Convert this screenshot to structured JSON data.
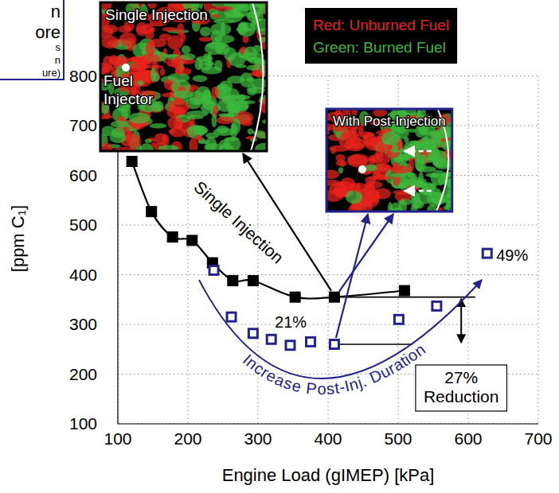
{
  "chart_data": {
    "type": "scatter",
    "x_label": "Engine Load (gIMEP) [kPa]",
    "y_label": "[ppm C₁]",
    "xlim": [
      100,
      700
    ],
    "xticks": [
      100,
      200,
      300,
      400,
      500,
      600,
      700
    ],
    "ylim": [
      100,
      800
    ],
    "yticks": [
      100,
      200,
      300,
      400,
      500,
      600,
      700,
      800
    ],
    "grid": true,
    "series": [
      {
        "name": "Single Injection",
        "color": "#000000",
        "marker": "square",
        "line_style": "smooth",
        "x": [
          120,
          148,
          178,
          206,
          235,
          264,
          293,
          353,
          409,
          509
        ],
        "values": [
          628,
          527,
          476,
          469,
          424,
          388,
          388,
          355,
          355,
          368
        ]
      },
      {
        "name": "Increase Post-Inj. Duration",
        "color": "#23238f",
        "marker": "square-open",
        "x": [
          237,
          262,
          293,
          319,
          346,
          375,
          409,
          501,
          555,
          627
        ],
        "values": [
          409,
          315,
          282,
          270,
          258,
          265,
          260,
          310,
          337,
          443
        ]
      }
    ],
    "reference_lines": [
      {
        "y": 355,
        "x": [
          409,
          610
        ],
        "color": "#000000"
      },
      {
        "y": 260,
        "x": [
          409,
          520
        ],
        "color": "#000000"
      }
    ],
    "reduction": {
      "x": 590,
      "from": 355,
      "to": 260,
      "label": "27% Reduction"
    },
    "annotations": [
      {
        "text": "21%",
        "x": 324,
        "y": 305
      },
      {
        "text": "49%",
        "x": 640,
        "y": 440
      }
    ],
    "insets": [
      {
        "title": "Single Injection",
        "label": "Fuel Injector",
        "color": "#000000"
      },
      {
        "title": "With Post-Injection",
        "color": "#23238f"
      }
    ],
    "image_legend": [
      {
        "text": "Red: Unburned Fuel",
        "color": "#e8231c"
      },
      {
        "text": "Green: Burned Fuel",
        "color": "#3db83d"
      }
    ],
    "cropped_box": [
      "n",
      "ore",
      "s",
      "n",
      "ure)"
    ]
  }
}
